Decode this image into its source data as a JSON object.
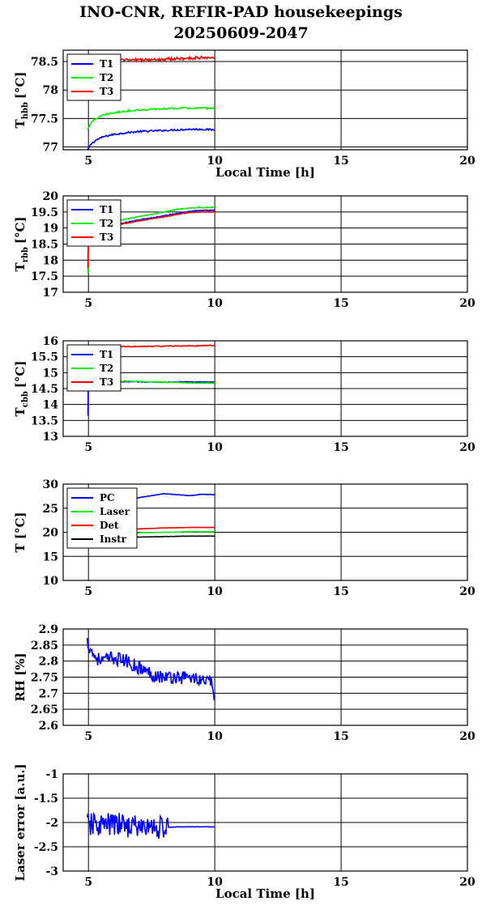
{
  "figure": {
    "title_line1": "INO-CNR, REFIR-PAD housekeepings",
    "title_line2": "20250609-2047"
  },
  "chart_data": [
    {
      "type": "line",
      "id": "thbb",
      "ylabel": "T",
      "ylabel_sub": "hbb",
      "ylabel_unit": "[°C]",
      "xlabel": "Local Time [h]",
      "xlim": [
        4,
        20
      ],
      "ylim": [
        76.95,
        78.7
      ],
      "yticks": [
        77,
        77.5,
        78,
        78.5
      ],
      "ytick_labels": [
        "77",
        "77.5",
        "78",
        "78.5"
      ],
      "xticks": [
        5,
        10,
        15,
        20
      ],
      "xtick_labels": [
        "5",
        "10",
        "15",
        "20"
      ],
      "grid": true,
      "legend": "top-left",
      "series": [
        {
          "name": "T1",
          "color": "#0000ff",
          "x": [
            4.95,
            5.1,
            5.3,
            5.6,
            6.0,
            6.5,
            7.0,
            7.5,
            8.0,
            8.5,
            9.0,
            9.5,
            10.0
          ],
          "y": [
            76.93,
            77.05,
            77.12,
            77.18,
            77.22,
            77.25,
            77.27,
            77.28,
            77.29,
            77.3,
            77.31,
            77.31,
            77.3
          ],
          "noise": 0.015
        },
        {
          "name": "T2",
          "color": "#00ee00",
          "x": [
            4.95,
            5.1,
            5.3,
            5.6,
            6.0,
            6.5,
            7.0,
            7.5,
            8.0,
            8.5,
            9.0,
            9.5,
            10.0
          ],
          "y": [
            77.3,
            77.42,
            77.5,
            77.56,
            77.6,
            77.63,
            77.65,
            77.66,
            77.67,
            77.68,
            77.68,
            77.68,
            77.68
          ],
          "noise": 0.015
        },
        {
          "name": "T3",
          "color": "#ff0000",
          "x": [
            5.0,
            5.5,
            6.0,
            6.5,
            7.0,
            7.5,
            8.0,
            8.5,
            9.0,
            9.5,
            10.0
          ],
          "y": [
            78.5,
            78.52,
            78.52,
            78.53,
            78.53,
            78.53,
            78.54,
            78.55,
            78.56,
            78.57,
            78.58
          ],
          "noise": 0.025
        }
      ]
    },
    {
      "type": "line",
      "id": "trbb",
      "ylabel": "T",
      "ylabel_sub": "rbb",
      "ylabel_unit": "[°C]",
      "xlabel": "",
      "xlim": [
        4,
        20
      ],
      "ylim": [
        17,
        20
      ],
      "yticks": [
        17,
        17.5,
        18,
        18.5,
        19,
        19.5,
        20
      ],
      "ytick_labels": [
        "17",
        "17.5",
        "18",
        "18.5",
        "19",
        "19.5",
        "20"
      ],
      "xticks": [
        5,
        10,
        15,
        20
      ],
      "xtick_labels": [
        "5",
        "10",
        "15",
        "20"
      ],
      "grid": true,
      "legend": "top-left",
      "series": [
        {
          "name": "T1",
          "color": "#0000ff",
          "x": [
            4.98,
            4.99,
            5.0,
            5.02,
            5.3,
            6.0,
            7.0,
            8.0,
            8.5,
            9.0,
            9.5,
            10.0
          ],
          "y": [
            17.7,
            18.6,
            18.75,
            18.85,
            18.95,
            19.1,
            19.25,
            19.38,
            19.45,
            19.52,
            19.55,
            19.55
          ],
          "noise": 0.015
        },
        {
          "name": "T2",
          "color": "#00ee00",
          "x": [
            4.98,
            4.99,
            5.0,
            5.02,
            5.3,
            6.0,
            7.0,
            8.0,
            8.5,
            9.0,
            9.5,
            10.0
          ],
          "y": [
            17.6,
            18.7,
            18.9,
            19.0,
            19.08,
            19.2,
            19.35,
            19.5,
            19.58,
            19.62,
            19.64,
            19.64
          ],
          "noise": 0.015
        },
        {
          "name": "T3",
          "color": "#ff0000",
          "x": [
            4.98,
            4.99,
            5.0,
            5.02,
            5.3,
            6.0,
            7.0,
            8.0,
            8.5,
            9.0,
            9.5,
            10.0
          ],
          "y": [
            17.75,
            18.6,
            18.7,
            18.8,
            18.92,
            19.08,
            19.22,
            19.35,
            19.42,
            19.48,
            19.5,
            19.5
          ],
          "noise": 0.015
        }
      ]
    },
    {
      "type": "line",
      "id": "tcbb",
      "ylabel": "T",
      "ylabel_sub": "cbb",
      "ylabel_unit": "[°C]",
      "xlabel": "",
      "xlim": [
        4,
        20
      ],
      "ylim": [
        13,
        16
      ],
      "yticks": [
        13,
        13.5,
        14,
        14.5,
        15,
        15.5,
        16
      ],
      "ytick_labels": [
        "13",
        "13.5",
        "14",
        "14.5",
        "15",
        "15.5",
        "16"
      ],
      "xticks": [
        5,
        10,
        15,
        20
      ],
      "xtick_labels": [
        "5",
        "10",
        "15",
        "20"
      ],
      "grid": true,
      "legend": "top-left",
      "series": [
        {
          "name": "T1",
          "color": "#0000ff",
          "x": [
            4.98,
            4.99,
            5.0,
            5.02,
            5.3,
            6.0,
            7.0,
            8.0,
            9.0,
            10.0
          ],
          "y": [
            13.65,
            14.5,
            14.65,
            14.7,
            14.72,
            14.72,
            14.71,
            14.7,
            14.71,
            14.7
          ],
          "noise": 0.012
        },
        {
          "name": "T2",
          "color": "#00ee00",
          "x": [
            4.98,
            4.99,
            5.0,
            5.02,
            5.3,
            6.0,
            7.0,
            8.0,
            9.0,
            10.0
          ],
          "y": [
            14.55,
            14.7,
            14.75,
            14.76,
            14.75,
            14.74,
            14.72,
            14.7,
            14.68,
            14.67
          ],
          "noise": 0.012
        },
        {
          "name": "T3",
          "color": "#ff0000",
          "x": [
            5.0,
            5.3,
            6.0,
            7.0,
            8.0,
            9.0,
            10.0
          ],
          "y": [
            15.82,
            15.82,
            15.82,
            15.82,
            15.83,
            15.84,
            15.85
          ],
          "noise": 0.015
        }
      ]
    },
    {
      "type": "line",
      "id": "temps",
      "ylabel": "T [°C]",
      "ylabel_sub": "",
      "ylabel_unit": "",
      "xlabel": "",
      "xlim": [
        4,
        20
      ],
      "ylim": [
        10,
        30
      ],
      "yticks": [
        10,
        15,
        20,
        25,
        30
      ],
      "ytick_labels": [
        "10",
        "15",
        "20",
        "25",
        "30"
      ],
      "xticks": [
        5,
        10,
        15,
        20
      ],
      "xtick_labels": [
        "5",
        "10",
        "15",
        "20"
      ],
      "grid": true,
      "legend": "top-left",
      "series": [
        {
          "name": "PC",
          "color": "#0000ff",
          "x": [
            5.0,
            5.5,
            6.0,
            6.5,
            7.0,
            7.5,
            8.0,
            8.5,
            9.0,
            9.5,
            10.0
          ],
          "y": [
            25.8,
            26.2,
            26.5,
            26.8,
            27.2,
            27.6,
            28.0,
            27.8,
            27.6,
            27.9,
            27.8
          ],
          "noise": 0.05
        },
        {
          "name": "Laser",
          "color": "#00ee00",
          "x": [
            5.0,
            6.0,
            7.0,
            8.0,
            9.0,
            10.0
          ],
          "y": [
            19.5,
            19.7,
            19.9,
            20.0,
            20.1,
            20.1
          ],
          "noise": 0.03
        },
        {
          "name": "Det",
          "color": "#ff0000",
          "x": [
            5.0,
            6.0,
            7.0,
            8.0,
            9.0,
            10.0
          ],
          "y": [
            20.2,
            20.5,
            20.7,
            20.9,
            21.0,
            21.0
          ],
          "noise": 0.03
        },
        {
          "name": "Instr",
          "color": "#000000",
          "x": [
            5.0,
            6.0,
            7.0,
            8.0,
            9.0,
            10.0
          ],
          "y": [
            18.6,
            18.8,
            19.0,
            19.1,
            19.2,
            19.2
          ],
          "noise": 0.03
        }
      ]
    },
    {
      "type": "line",
      "id": "rh",
      "ylabel": "RH [%]",
      "ylabel_sub": "",
      "ylabel_unit": "",
      "xlabel": "",
      "xlim": [
        4,
        20
      ],
      "ylim": [
        2.6,
        2.9
      ],
      "yticks": [
        2.6,
        2.65,
        2.7,
        2.75,
        2.8,
        2.85,
        2.9
      ],
      "ytick_labels": [
        "2.6",
        "2.65",
        "2.7",
        "2.75",
        "2.8",
        "2.85",
        "2.9"
      ],
      "xticks": [
        5,
        10,
        15,
        20
      ],
      "xtick_labels": [
        "5",
        "10",
        "15",
        "20"
      ],
      "grid": true,
      "legend": "none",
      "series": [
        {
          "name": "",
          "color": "#0000ff",
          "x": [
            4.95,
            5.2,
            5.5,
            6.0,
            6.5,
            7.0,
            7.5,
            8.0,
            8.5,
            9.0,
            9.5,
            9.9,
            10.0
          ],
          "y": [
            2.86,
            2.82,
            2.8,
            2.81,
            2.8,
            2.78,
            2.76,
            2.75,
            2.75,
            2.75,
            2.74,
            2.73,
            2.69
          ],
          "noise": 0.022
        }
      ]
    },
    {
      "type": "line",
      "id": "laser",
      "ylabel": "Laser error [a.u.]",
      "ylabel_sub": "",
      "ylabel_unit": "",
      "xlabel": "Local Time [h]",
      "xlim": [
        4,
        20
      ],
      "ylim": [
        -3,
        -1
      ],
      "yticks": [
        -3,
        -2.5,
        -2,
        -1.5,
        -1
      ],
      "ytick_labels": [
        "-3",
        "-2.5",
        "-2",
        "-1.5",
        "-1"
      ],
      "xticks": [
        5,
        10,
        15,
        20
      ],
      "xtick_labels": [
        "5",
        "10",
        "15",
        "20"
      ],
      "grid": true,
      "legend": "none",
      "series": [
        {
          "name": "",
          "color": "#0000ff",
          "x": [
            4.95,
            5.5,
            6.0,
            6.5,
            7.0,
            7.5,
            8.0,
            8.2
          ],
          "y": [
            -2.05,
            -2.05,
            -2.05,
            -2.05,
            -2.1,
            -2.1,
            -2.1,
            -2.1
          ],
          "noise": 0.25
        },
        {
          "name": "",
          "color": "#0000ff",
          "x": [
            8.2,
            8.5,
            9.0,
            9.5,
            10.0
          ],
          "y": [
            -2.1,
            -2.09,
            -2.09,
            -2.09,
            -2.09
          ],
          "noise": 0.004
        }
      ]
    }
  ]
}
